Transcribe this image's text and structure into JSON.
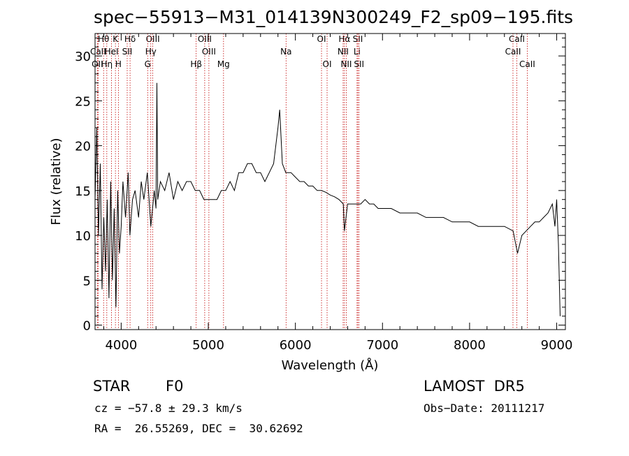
{
  "chart_data": {
    "type": "line",
    "title": "spec−55913−M31_014139N300249_F2_sp09−195.fits",
    "xlabel": "Wavelength (Å)",
    "ylabel": "Flux (relative)",
    "xlim": [
      3700,
      9100
    ],
    "ylim": [
      -0.5,
      32.5
    ],
    "x_ticks": [
      {
        "value": 4000,
        "label": "4000"
      },
      {
        "value": 5000,
        "label": "5000"
      },
      {
        "value": 6000,
        "label": "6000"
      },
      {
        "value": 7000,
        "label": "7000"
      },
      {
        "value": 8000,
        "label": "8000"
      },
      {
        "value": 9000,
        "label": "9000"
      }
    ],
    "y_ticks": [
      {
        "value": 0,
        "label": "0"
      },
      {
        "value": 5,
        "label": "5"
      },
      {
        "value": 10,
        "label": "10"
      },
      {
        "value": 15,
        "label": "15"
      },
      {
        "value": 20,
        "label": "20"
      },
      {
        "value": 25,
        "label": "25"
      },
      {
        "value": 30,
        "label": "30"
      }
    ],
    "grid": false,
    "series": [
      {
        "x": [
          3700,
          3720,
          3740,
          3760,
          3780,
          3800,
          3820,
          3840,
          3860,
          3880,
          3900,
          3920,
          3940,
          3960,
          3980,
          4000,
          4020,
          4050,
          4080,
          4100,
          4130,
          4160,
          4200,
          4230,
          4260,
          4300,
          4340,
          4380,
          4400,
          4410,
          4420,
          4450,
          4500,
          4550,
          4600,
          4650,
          4700,
          4750,
          4800,
          4850,
          4900,
          4950,
          5000,
          5050,
          5100,
          5150,
          5200,
          5250,
          5300,
          5350,
          5400,
          5450,
          5500,
          5550,
          5600,
          5650,
          5700,
          5750,
          5800,
          5820,
          5850,
          5890,
          5900,
          5950,
          6000,
          6050,
          6100,
          6150,
          6200,
          6250,
          6300,
          6350,
          6400,
          6450,
          6500,
          6550,
          6563,
          6600,
          6650,
          6700,
          6750,
          6800,
          6850,
          6900,
          6950,
          7000,
          7100,
          7200,
          7300,
          7400,
          7500,
          7600,
          7700,
          7800,
          7900,
          8000,
          8100,
          8200,
          8300,
          8400,
          8500,
          8550,
          8600,
          8650,
          8700,
          8750,
          8800,
          8850,
          8900,
          8950,
          8980,
          9000,
          9020,
          9040
        ],
        "y": [
          14,
          22,
          10,
          18,
          4,
          12,
          6,
          14,
          3,
          16,
          5,
          13,
          2,
          15,
          8,
          11,
          16,
          12,
          17,
          10,
          14,
          15,
          12,
          16,
          14,
          17,
          11,
          15,
          13,
          27,
          14,
          16,
          15,
          17,
          14,
          16,
          15,
          16,
          16,
          15,
          15,
          14,
          14,
          14,
          14,
          15,
          15,
          16,
          15,
          17,
          17,
          18,
          18,
          17,
          17,
          16,
          17,
          18,
          22,
          24,
          18,
          17,
          17,
          17,
          16.5,
          16,
          16,
          15.5,
          15.5,
          15,
          15,
          14.8,
          14.5,
          14.3,
          14,
          13.5,
          10.5,
          13.5,
          13.5,
          13.5,
          13.5,
          14,
          13.5,
          13.5,
          13,
          13,
          13,
          12.5,
          12.5,
          12.5,
          12,
          12,
          12,
          11.5,
          11.5,
          11.5,
          11,
          11,
          11,
          11,
          10.5,
          8,
          10,
          10.5,
          11,
          11.5,
          11.5,
          12,
          12.5,
          13.5,
          11,
          14,
          9,
          1
        ]
      }
    ],
    "lines": [
      {
        "name": "Hθ",
        "wl": 3798,
        "row": 0
      },
      {
        "name": "K",
        "wl": 3934,
        "row": 0
      },
      {
        "name": "Hδ",
        "wl": 4102,
        "row": 0
      },
      {
        "name": "OIII",
        "wl": 4363,
        "row": 0
      },
      {
        "name": "OIII",
        "wl": 4959,
        "row": 0
      },
      {
        "name": "OI",
        "wl": 6300,
        "row": 0
      },
      {
        "name": "Hα",
        "wl": 6563,
        "row": 0
      },
      {
        "name": "SII",
        "wl": 6717,
        "row": 0
      },
      {
        "name": "CaII",
        "wl": 8542,
        "row": 0
      },
      {
        "name": "CaII",
        "wl": 3735,
        "row": 1
      },
      {
        "name": "HeI",
        "wl": 3889,
        "row": 1
      },
      {
        "name": "SII",
        "wl": 4069,
        "row": 1
      },
      {
        "name": "Hγ",
        "wl": 4340,
        "row": 1
      },
      {
        "name": "OIII",
        "wl": 5007,
        "row": 1
      },
      {
        "name": "Na",
        "wl": 5893,
        "row": 1
      },
      {
        "name": "NII",
        "wl": 6548,
        "row": 1
      },
      {
        "name": "Li",
        "wl": 6708,
        "row": 1
      },
      {
        "name": "CaII",
        "wl": 8498,
        "row": 1
      },
      {
        "name": "OII",
        "wl": 3727,
        "row": 2
      },
      {
        "name": "Hη",
        "wl": 3835,
        "row": 2
      },
      {
        "name": "H",
        "wl": 3968,
        "row": 2
      },
      {
        "name": "G",
        "wl": 4304,
        "row": 2
      },
      {
        "name": "Hβ",
        "wl": 4861,
        "row": 2
      },
      {
        "name": "Mg",
        "wl": 5175,
        "row": 2
      },
      {
        "name": "OI",
        "wl": 6364,
        "row": 2
      },
      {
        "name": "NII",
        "wl": 6584,
        "row": 2
      },
      {
        "name": "SII",
        "wl": 6731,
        "row": 2
      },
      {
        "name": "CaII",
        "wl": 8662,
        "row": 2
      }
    ]
  },
  "info": {
    "object": "STAR",
    "subclass": "F0",
    "survey": "LAMOST  DR5",
    "cz": "cz = −57.8 ± 29.3 km/s",
    "obs_date": "Obs−Date: 20111217",
    "radec": "RA =  26.55269, DEC =  30.62692"
  }
}
